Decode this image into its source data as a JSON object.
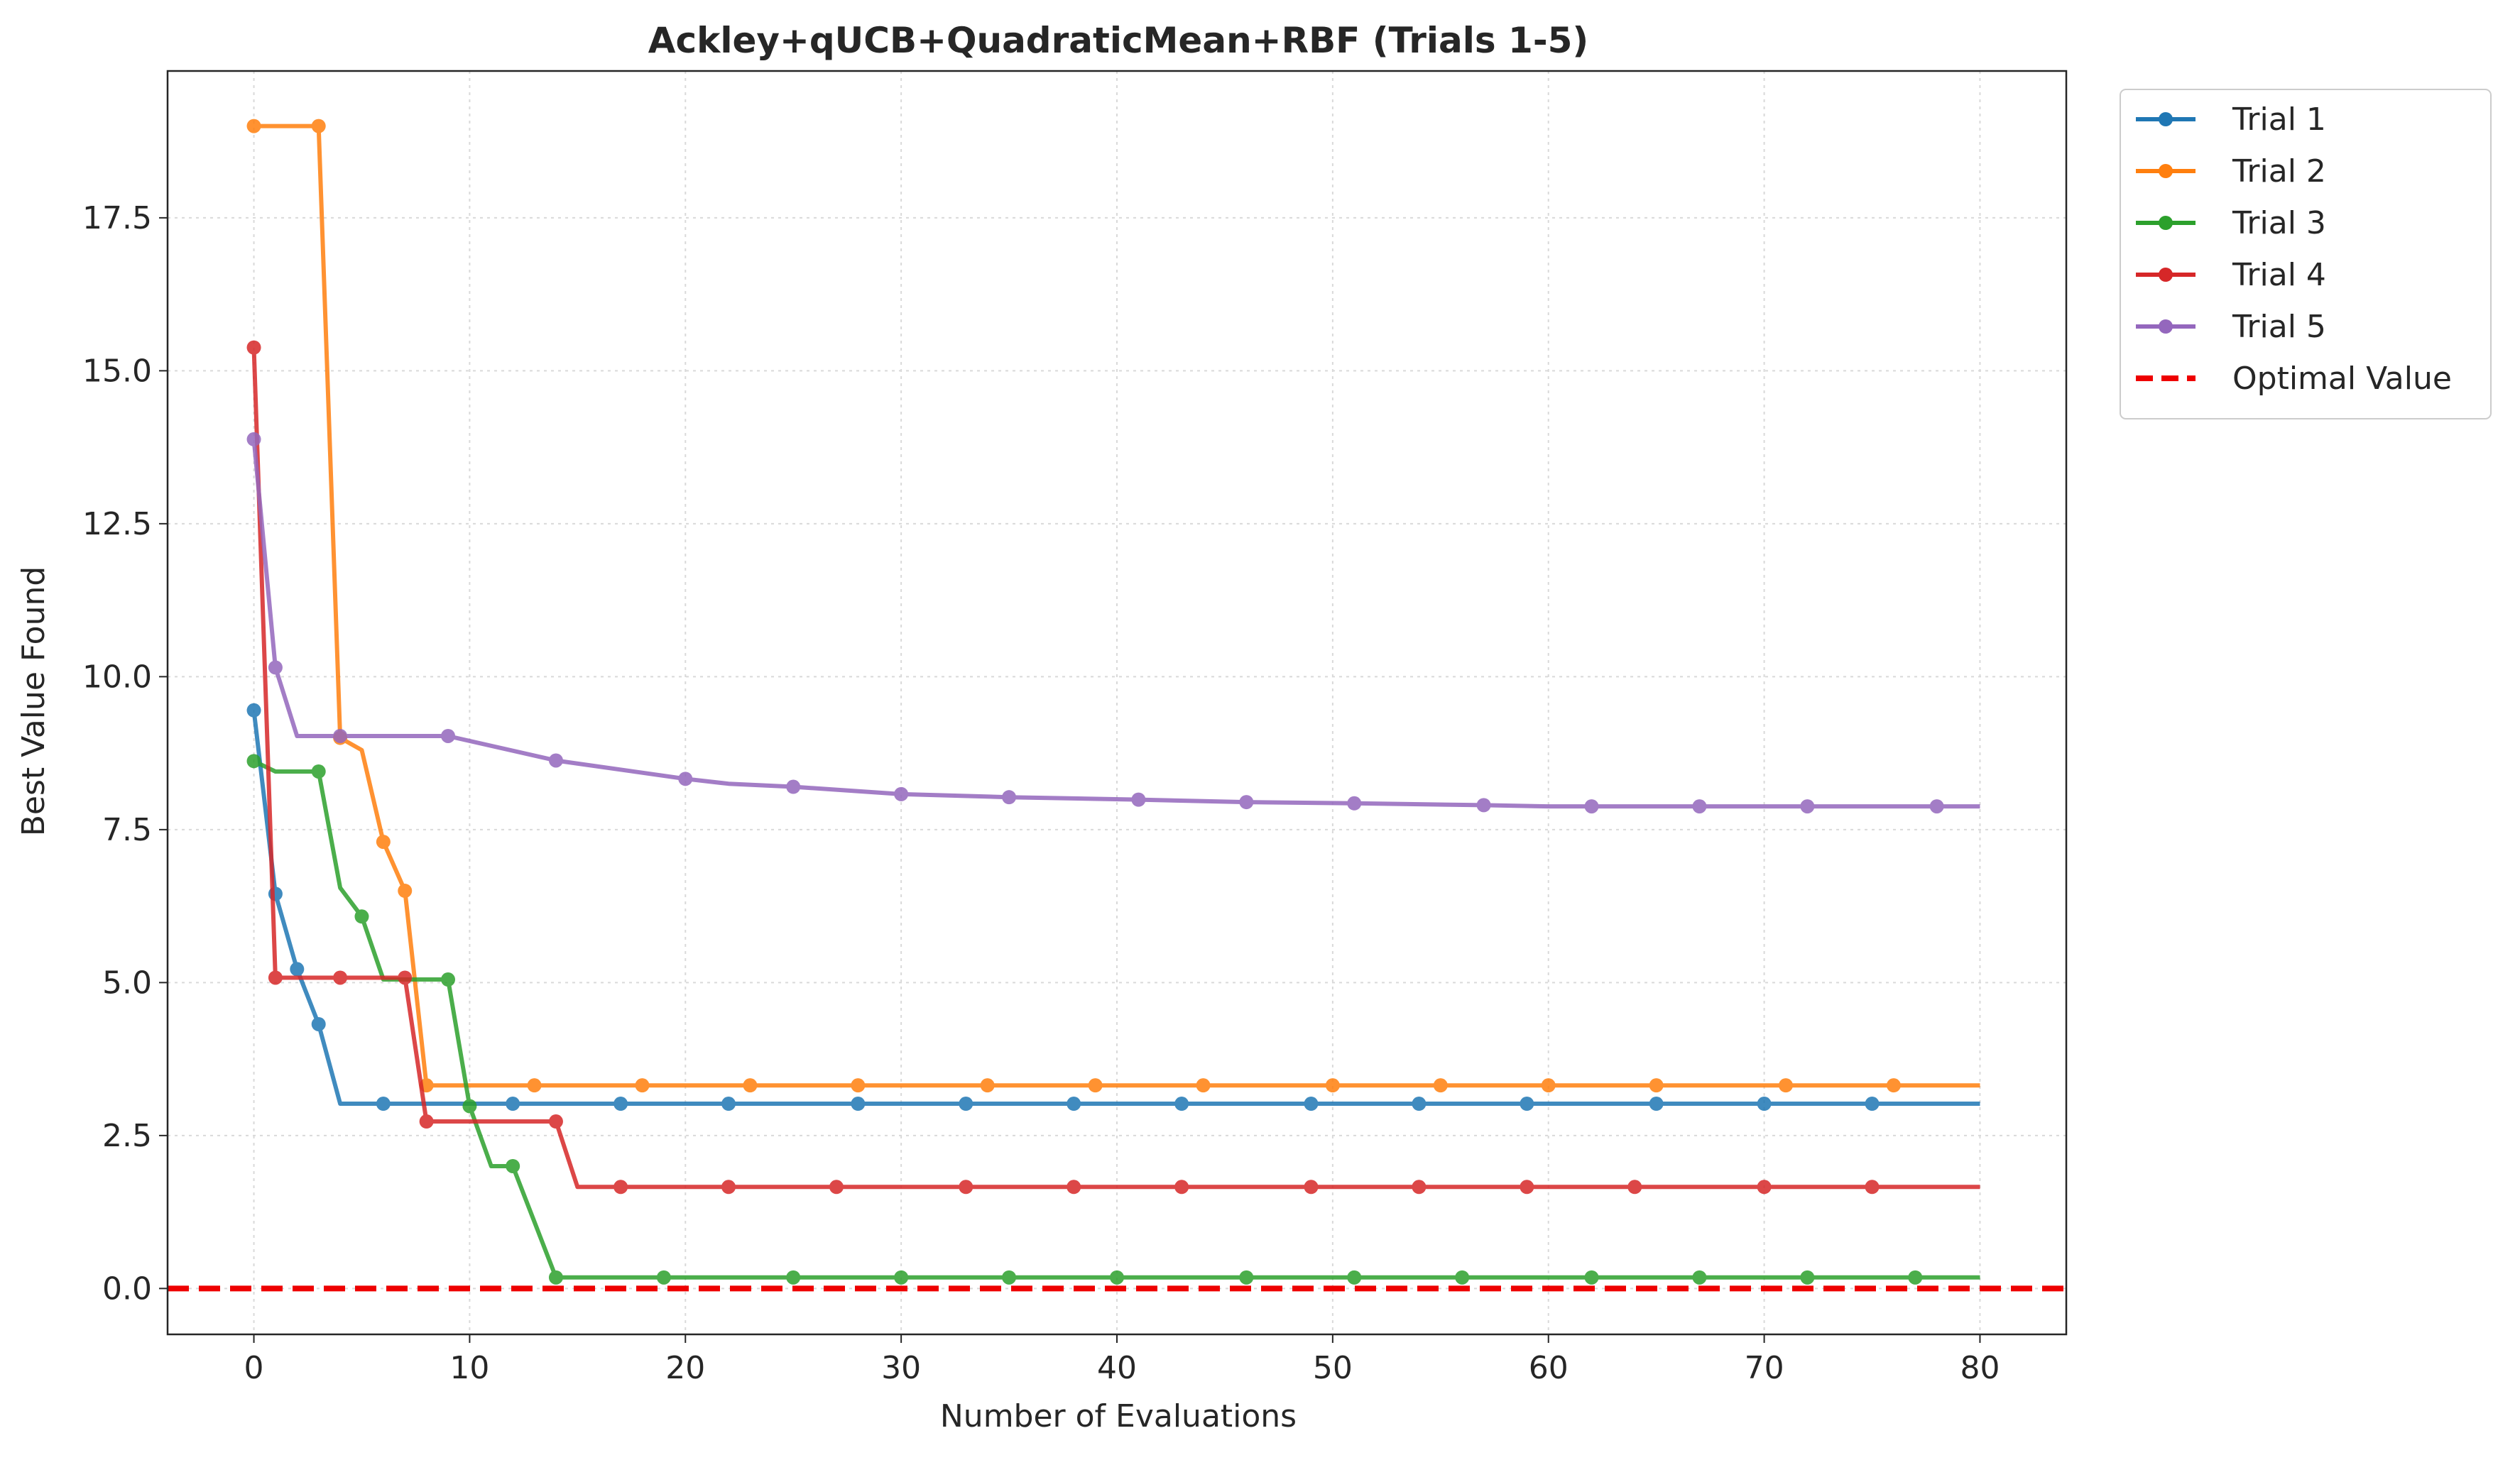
{
  "chart_data": {
    "type": "line",
    "title": "Ackley+qUCB+QuadraticMean+RBF (Trials 1-5)",
    "xlabel": "Number of Evaluations",
    "ylabel": "Best Value Found",
    "xlim": [
      -4,
      84
    ],
    "ylim": [
      -0.75,
      19.9
    ],
    "xticks": [
      0,
      10,
      20,
      30,
      40,
      50,
      60,
      70,
      80
    ],
    "xtick_labels": [
      "0",
      "10",
      "20",
      "30",
      "40",
      "50",
      "60",
      "70",
      "80"
    ],
    "yticks": [
      0.0,
      2.5,
      5.0,
      7.5,
      10.0,
      12.5,
      15.0,
      17.5
    ],
    "ytick_labels": [
      "0.0",
      "2.5",
      "5.0",
      "7.5",
      "10.0",
      "12.5",
      "15.0",
      "17.5"
    ],
    "grid": true,
    "legend_position": "outside upper right",
    "optimal_value": 0.0,
    "series": [
      {
        "name": "Trial 1",
        "color": "#1f77b4",
        "x": [
          0,
          1,
          2,
          3,
          4,
          80
        ],
        "y": [
          9.45,
          6.45,
          5.22,
          4.32,
          3.02,
          3.02
        ],
        "markers_x": [
          0,
          1,
          2,
          3,
          6,
          12,
          17,
          22,
          28,
          33,
          38,
          43,
          49,
          54,
          59,
          65,
          70,
          75
        ]
      },
      {
        "name": "Trial 2",
        "color": "#ff7f0e",
        "x": [
          0,
          3,
          4,
          5,
          6,
          7,
          8,
          80
        ],
        "y": [
          19.0,
          19.0,
          9.0,
          8.8,
          7.3,
          6.5,
          3.32,
          3.32
        ],
        "markers_x": [
          0,
          3,
          4,
          6,
          7,
          8,
          13,
          18,
          23,
          28,
          34,
          39,
          44,
          50,
          55,
          60,
          65,
          71,
          76
        ]
      },
      {
        "name": "Trial 3",
        "color": "#2ca02c",
        "x": [
          0,
          1,
          3,
          4,
          5,
          6,
          9,
          10,
          11,
          12,
          14,
          80
        ],
        "y": [
          8.62,
          8.45,
          8.45,
          6.55,
          6.08,
          5.05,
          5.05,
          2.98,
          2.0,
          2.0,
          0.18,
          0.18
        ],
        "markers_x": [
          0,
          3,
          5,
          9,
          10,
          12,
          14,
          19,
          25,
          30,
          35,
          40,
          46,
          51,
          56,
          62,
          67,
          72,
          77
        ]
      },
      {
        "name": "Trial 4",
        "color": "#d62728",
        "x": [
          0,
          1,
          7,
          8,
          14,
          15,
          80
        ],
        "y": [
          15.38,
          5.08,
          5.08,
          2.73,
          2.73,
          1.66,
          1.66
        ],
        "markers_x": [
          0,
          1,
          4,
          7,
          8,
          14,
          17,
          22,
          27,
          33,
          38,
          43,
          49,
          54,
          59,
          64,
          70,
          75
        ]
      },
      {
        "name": "Trial 5",
        "color": "#9467bd",
        "x": [
          0,
          1,
          2,
          9,
          14,
          20,
          22,
          25,
          30,
          35,
          41,
          46,
          51,
          57,
          60,
          80
        ],
        "y": [
          13.88,
          10.15,
          9.03,
          9.03,
          8.63,
          8.33,
          8.25,
          8.2,
          8.08,
          8.03,
          7.99,
          7.95,
          7.93,
          7.9,
          7.88,
          7.88
        ],
        "markers_x": [
          0,
          1,
          4,
          9,
          14,
          20,
          25,
          30,
          35,
          41,
          46,
          51,
          57,
          62,
          67,
          72,
          78
        ]
      }
    ],
    "optimal_line": {
      "name": "Optimal Value",
      "color": "#ee0000"
    }
  }
}
